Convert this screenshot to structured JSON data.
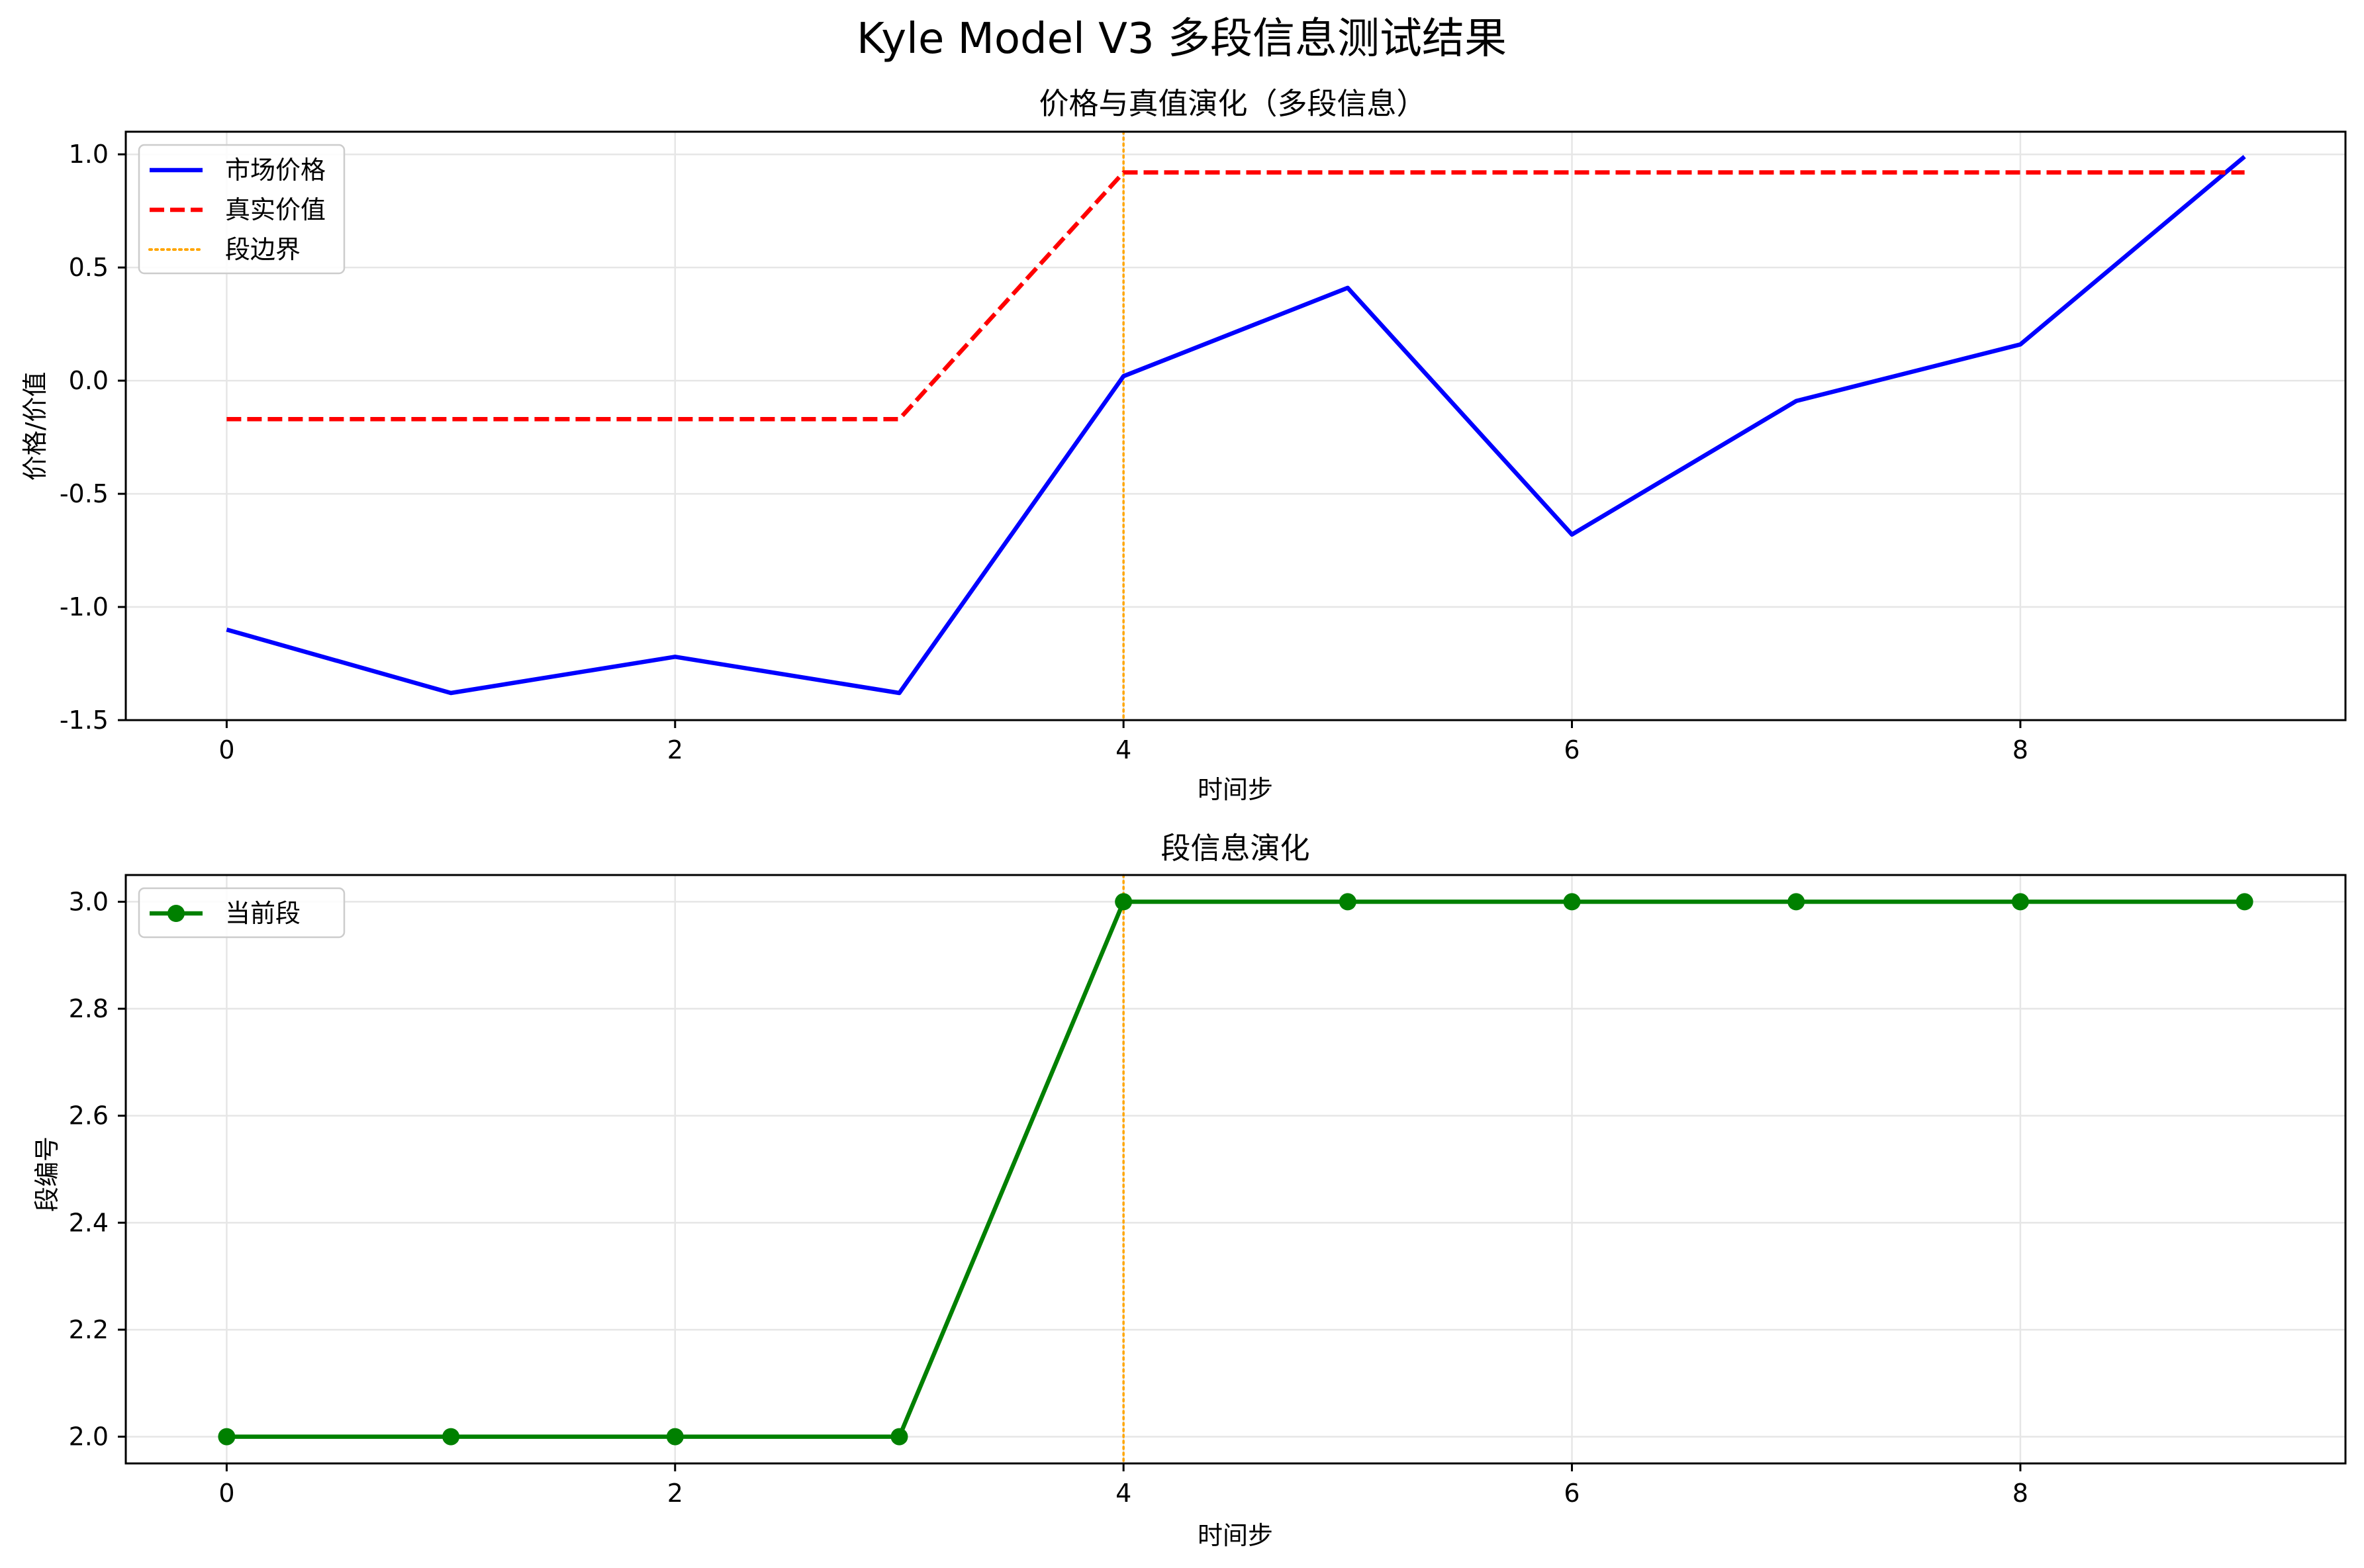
{
  "suptitle": "Kyle Model V3 多段信息测试结果",
  "chart_data": [
    {
      "type": "line",
      "title": "价格与真值演化（多段信息）",
      "xlabel": "时间步",
      "ylabel": "价格/价值",
      "xlim": [
        -0.45,
        9.45
      ],
      "ylim": [
        -1.5,
        1.1
      ],
      "xticks": [
        0,
        2,
        4,
        6,
        8
      ],
      "xtick_labels": [
        "0",
        "2",
        "4",
        "6",
        "8"
      ],
      "yticks": [
        1.0,
        0.5,
        0.0,
        -0.5,
        -1.0,
        -1.5
      ],
      "ytick_labels": [
        "1.0",
        "0.5",
        "0.0",
        "-0.5",
        "-1.0",
        "-1.5"
      ],
      "grid": true,
      "legend_position": "top-left",
      "x": [
        0,
        1,
        2,
        3,
        4,
        5,
        6,
        7,
        8,
        9
      ],
      "series": [
        {
          "name": "市场价格",
          "style": "solid",
          "color": "#0000ff",
          "values": [
            -1.1,
            -1.38,
            -1.22,
            -1.38,
            0.02,
            0.41,
            -0.68,
            -0.09,
            0.16,
            0.99
          ]
        },
        {
          "name": "真实价值",
          "style": "dashed",
          "color": "#ff0000",
          "values": [
            -0.17,
            -0.17,
            -0.17,
            -0.17,
            0.92,
            0.92,
            0.92,
            0.92,
            0.92,
            0.92
          ]
        }
      ],
      "vlines": [
        {
          "name": "段边界",
          "x": 4,
          "style": "dotted",
          "color": "#ffa500"
        }
      ]
    },
    {
      "type": "line",
      "title": "段信息演化",
      "xlabel": "时间步",
      "ylabel": "段编号",
      "xlim": [
        -0.45,
        9.45
      ],
      "ylim": [
        1.95,
        3.05
      ],
      "xticks": [
        0,
        2,
        4,
        6,
        8
      ],
      "xtick_labels": [
        "0",
        "2",
        "4",
        "6",
        "8"
      ],
      "yticks": [
        3.0,
        2.8,
        2.6,
        2.4,
        2.2,
        2.0
      ],
      "ytick_labels": [
        "3.0",
        "2.8",
        "2.6",
        "2.4",
        "2.2",
        "2.0"
      ],
      "grid": true,
      "legend_position": "top-left",
      "x": [
        0,
        1,
        2,
        3,
        4,
        5,
        6,
        7,
        8,
        9
      ],
      "series": [
        {
          "name": "当前段",
          "style": "solid-markers",
          "color": "#008000",
          "values": [
            2,
            2,
            2,
            2,
            3,
            3,
            3,
            3,
            3,
            3
          ]
        }
      ],
      "vlines": [
        {
          "x": 4,
          "style": "dotted",
          "color": "#ffa500"
        }
      ]
    }
  ]
}
